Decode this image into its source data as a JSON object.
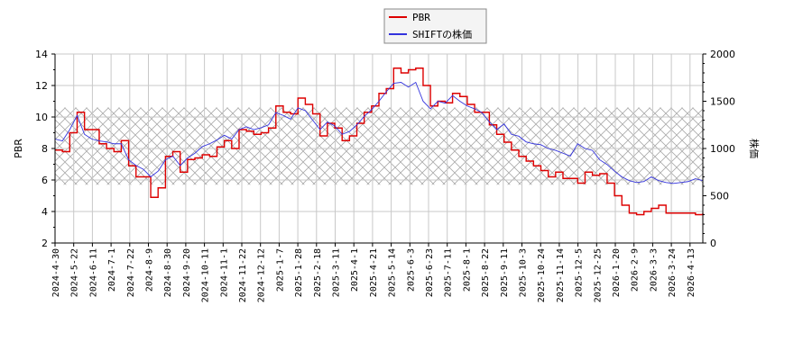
{
  "chart_data": {
    "type": "line",
    "title": "",
    "legend": {
      "position": "top-center",
      "entries": [
        {
          "label": "PBR",
          "color": "#dd0000"
        },
        {
          "label": "SHIFTの株価",
          "color": "#3333dd"
        }
      ]
    },
    "xlabel": "",
    "ylabel": "PBR",
    "ylabel_right": "株価",
    "ylim": [
      2,
      14
    ],
    "ylim_right": [
      0,
      2000
    ],
    "yticks": [
      2,
      4,
      6,
      8,
      10,
      12,
      14
    ],
    "yticks_right": [
      0,
      500,
      1000,
      1500,
      2000
    ],
    "grid": true,
    "hatched_band": {
      "y_from": 5.7,
      "y_to": 10.6
    },
    "x_tick_labels": [
      "2024-4-30",
      "2024-5-22",
      "2024-6-11",
      "2024-7-1",
      "2024-7-22",
      "2024-8-9",
      "2024-8-30",
      "2024-9-20",
      "2024-10-11",
      "2024-11-1",
      "2024-11-22",
      "2024-12-12",
      "2025-1-7",
      "2025-1-28",
      "2025-2-18",
      "2025-3-11",
      "2025-4-1",
      "2025-4-21",
      "2025-5-14",
      "2025-6-3",
      "2025-6-23",
      "2025-7-11",
      "2025-8-1",
      "2025-8-22",
      "2025-9-11",
      "2025-10-3",
      "2025-10-24",
      "2025-11-14",
      "2025-12-5",
      "2025-12-25",
      "2026-1-20",
      "2026-2-9",
      "2026-3-3",
      "2026-3-24",
      "2026-4-13"
    ],
    "series": [
      {
        "name": "PBR",
        "axis": "left",
        "color": "#dd0000",
        "values": [
          7.9,
          7.8,
          9.0,
          10.3,
          9.2,
          9.2,
          8.3,
          8.0,
          7.8,
          8.5,
          6.9,
          6.2,
          6.2,
          4.9,
          5.5,
          7.5,
          7.8,
          6.5,
          7.3,
          7.4,
          7.6,
          7.5,
          8.1,
          8.5,
          8.0,
          9.2,
          9.1,
          8.9,
          9.0,
          9.3,
          10.7,
          10.3,
          10.2,
          11.2,
          10.8,
          10.2,
          8.8,
          9.6,
          9.3,
          8.5,
          8.8,
          9.6,
          10.3,
          10.7,
          11.5,
          11.8,
          13.1,
          12.8,
          13.0,
          13.1,
          12.0,
          10.7,
          11.0,
          10.9,
          11.5,
          11.3,
          10.8,
          10.3,
          10.3,
          9.5,
          8.9,
          8.4,
          7.9,
          7.5,
          7.2,
          6.9,
          6.6,
          6.2,
          6.5,
          6.1,
          6.1,
          5.8,
          6.5,
          6.3,
          6.4,
          5.8,
          5.0,
          4.4,
          3.9,
          3.8,
          4.0,
          4.2,
          4.4,
          3.9,
          3.9,
          3.9,
          3.9,
          3.8,
          3.9
        ]
      },
      {
        "name": "SHIFTの株価",
        "axis": "right",
        "color": "#3333dd",
        "values": [
          1100,
          1080,
          1200,
          1350,
          1150,
          1100,
          1080,
          1070,
          1050,
          1050,
          880,
          820,
          780,
          700,
          760,
          880,
          920,
          820,
          900,
          950,
          1020,
          1050,
          1090,
          1140,
          1100,
          1200,
          1230,
          1200,
          1220,
          1250,
          1380,
          1350,
          1310,
          1430,
          1400,
          1300,
          1200,
          1280,
          1240,
          1150,
          1180,
          1250,
          1340,
          1410,
          1500,
          1600,
          1690,
          1700,
          1650,
          1700,
          1500,
          1420,
          1500,
          1480,
          1560,
          1500,
          1450,
          1420,
          1380,
          1280,
          1200,
          1260,
          1150,
          1130,
          1070,
          1050,
          1040,
          1000,
          980,
          950,
          920,
          1050,
          1000,
          980,
          880,
          830,
          760,
          700,
          660,
          640,
          650,
          700,
          660,
          640,
          630,
          640,
          650,
          680,
          660
        ]
      }
    ]
  }
}
